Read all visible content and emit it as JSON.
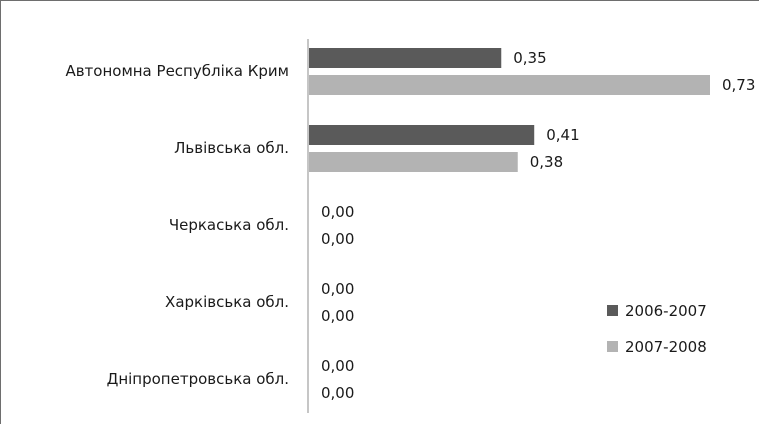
{
  "chart_data": {
    "type": "bar",
    "orientation": "horizontal",
    "categories": [
      "Автономна Республіка Крим",
      "Львівська обл.",
      "Черкаська обл.",
      "Харківська обл.",
      "Дніпропетровська обл."
    ],
    "series": [
      {
        "name": "2006-2007",
        "values": [
          0.35,
          0.41,
          0.0,
          0.0,
          0.0
        ],
        "labels": [
          "0,35",
          "0,41",
          "0,00",
          "0,00",
          "0,00"
        ],
        "color": "#5a5a5a"
      },
      {
        "name": "2007-2008",
        "values": [
          0.73,
          0.38,
          0.0,
          0.0,
          0.0
        ],
        "labels": [
          "0,73",
          "0,38",
          "0,00",
          "0,00",
          "0,00"
        ],
        "color": "#b3b3b3"
      }
    ],
    "title": "",
    "xlabel": "",
    "ylabel": "",
    "xlim": [
      0,
      0.73
    ],
    "grid": false,
    "legend_position": "bottom-right"
  }
}
